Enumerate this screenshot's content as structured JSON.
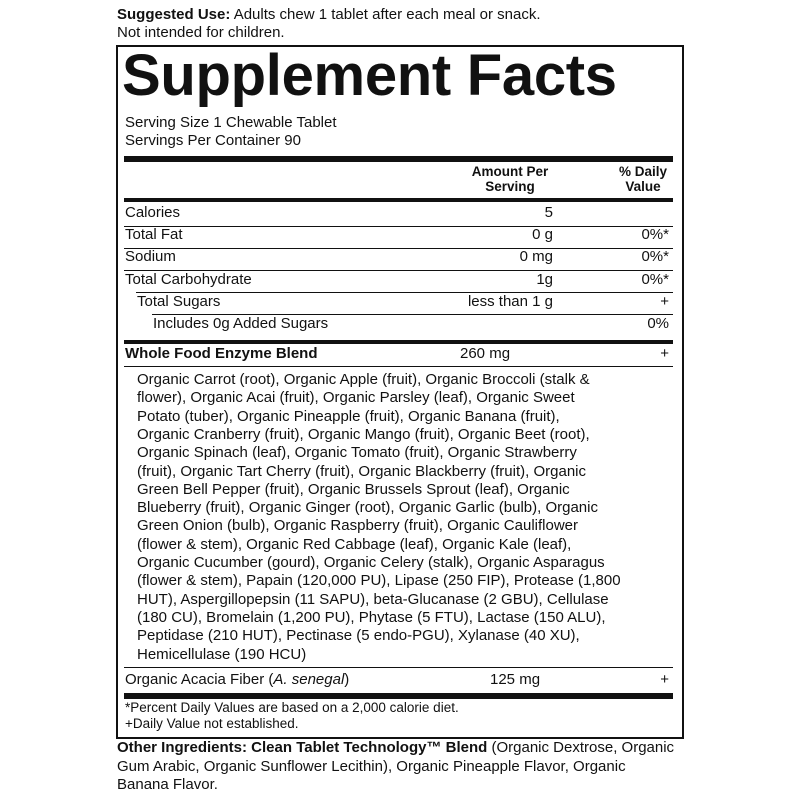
{
  "suggested_use": {
    "label": "Suggested Use:",
    "text": "Adults chew 1 tablet after each meal or snack.",
    "text_line2": "Not intended for children."
  },
  "title": "Supplement Facts",
  "serving_size": "Serving Size 1 Chewable Tablet",
  "servings_per_container": "Servings Per Container 90",
  "header": {
    "amount": [
      "Amount Per",
      "Serving"
    ],
    "daily": [
      "% Daily",
      "Value"
    ]
  },
  "rows": [
    [
      "Calories",
      "5",
      ""
    ],
    [
      "Total Fat",
      "0 g",
      "0%*"
    ],
    [
      "Sodium",
      "0 mg",
      "0%*"
    ],
    [
      "Total Carbohydrate",
      "1g",
      "0%*"
    ],
    [
      "Total Sugars",
      "less than 1 g",
      "+"
    ],
    [
      "Includes 0g Added Sugars",
      "",
      "0%"
    ]
  ],
  "blend": {
    "name": "Whole Food Enzyme Blend",
    "amount": "260 mg",
    "daily": "+",
    "ingredients": [
      "Organic Carrot (root), Organic Apple (fruit), Organic Broccoli (stalk &",
      "flower), Organic Acai (fruit), Organic Parsley (leaf), Organic Sweet",
      "Potato (tuber), Organic Pineapple (fruit), Organic Banana (fruit),",
      "Organic Cranberry (fruit), Organic Mango (fruit), Organic Beet (root),",
      "Organic Spinach (leaf), Organic Tomato (fruit), Organic Strawberry",
      "(fruit), Organic Tart Cherry (fruit), Organic Blackberry (fruit), Organic",
      "Green Bell Pepper (fruit), Organic Brussels Sprout (leaf), Organic",
      "Blueberry (fruit), Organic Ginger (root), Organic Garlic (bulb), Organic",
      "Green Onion (bulb), Organic Raspberry (fruit), Organic Cauliflower",
      "(flower & stem), Organic Red Cabbage (leaf), Organic Kale (leaf),",
      "Organic Cucumber (gourd), Organic Celery (stalk), Organic Asparagus",
      "(flower & stem), Papain (120,000 PU), Lipase (250 FIP), Protease (1,800",
      "HUT), Aspergillopepsin (11 SAPU), beta-Glucanase (2 GBU), Cellulase",
      "(180 CU), Bromelain (1,200 PU), Phytase (5 FTU), Lactase (150 ALU),",
      "Peptidase (210 HUT), Pectinase (5 endo-PGU), Xylanase (40 XU),",
      "Hemicellulase (190 HCU)"
    ]
  },
  "acacia": {
    "name_prefix": "Organic Acacia Fiber (",
    "name_italic": "A. senegal",
    "name_suffix": ")",
    "amount": "125 mg",
    "daily": "+"
  },
  "footnotes": [
    "*Percent Daily Values are based on a 2,000 calorie diet.",
    "+Daily Value not established."
  ],
  "other_ingredients": {
    "label": "Other Ingredients: Clean Tablet Technology™ Blend",
    "text": "(Organic Dextrose, Organic Gum Arabic, Organic Sunflower Lecithin), Organic Pineapple Flavor, Organic Banana Flavor."
  }
}
